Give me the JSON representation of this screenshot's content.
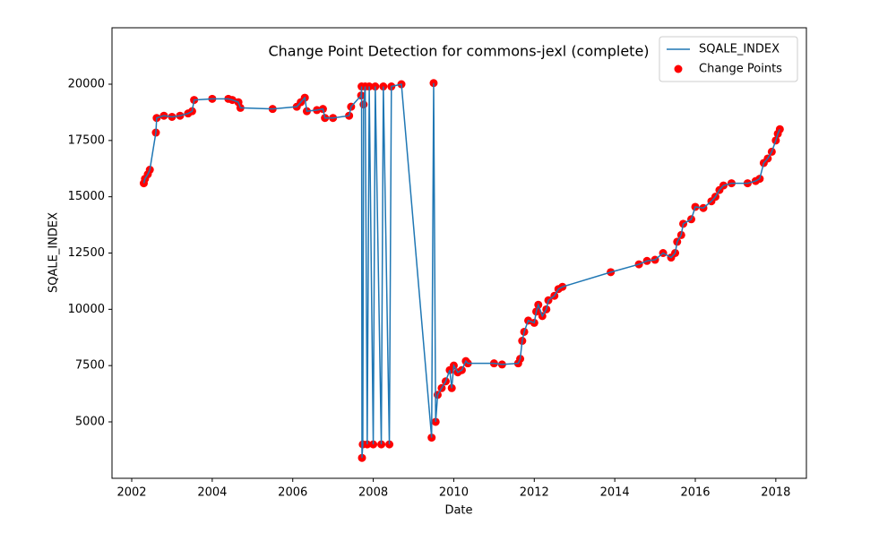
{
  "chart_data": {
    "type": "line",
    "title": "Change Point Detection for commons-jexl (complete)",
    "x_label": "Date",
    "y_label": "SQALE_INDEX",
    "x": [
      2002.3,
      2002.33,
      2002.4,
      2002.45,
      2002.6,
      2002.62,
      2002.8,
      2003.0,
      2003.2,
      2003.4,
      2003.5,
      2003.55,
      2004.0,
      2004.4,
      2004.5,
      2004.65,
      2004.7,
      2005.5,
      2006.1,
      2006.2,
      2006.3,
      2006.35,
      2006.6,
      2006.75,
      2006.8,
      2007.0,
      2007.4,
      2007.45,
      2007.7,
      2007.71,
      2007.72,
      2007.74,
      2007.76,
      2007.8,
      2007.85,
      2007.9,
      2008.0,
      2008.05,
      2008.2,
      2008.25,
      2008.4,
      2008.45,
      2008.7,
      2009.45,
      2009.5,
      2009.55,
      2009.6,
      2009.7,
      2009.8,
      2009.9,
      2009.95,
      2010.0,
      2010.1,
      2010.2,
      2010.3,
      2010.35,
      2011.0,
      2011.2,
      2011.6,
      2011.65,
      2011.7,
      2011.75,
      2011.85,
      2012.0,
      2012.05,
      2012.1,
      2012.2,
      2012.3,
      2012.35,
      2012.5,
      2012.6,
      2012.7,
      2013.9,
      2014.6,
      2014.8,
      2015.0,
      2015.2,
      2015.4,
      2015.5,
      2015.55,
      2015.65,
      2015.7,
      2015.9,
      2016.0,
      2016.2,
      2016.4,
      2016.5,
      2016.6,
      2016.7,
      2016.9,
      2017.3,
      2017.5,
      2017.6,
      2017.7,
      2017.8,
      2017.9,
      2018.0,
      2018.05,
      2018.1
    ],
    "series": [
      {
        "name": "SQALE_INDEX",
        "type": "line",
        "color": "#1f77b4",
        "values": [
          15600,
          15800,
          16000,
          16200,
          17850,
          18500,
          18600,
          18550,
          18600,
          18700,
          18800,
          19300,
          19350,
          19350,
          19300,
          19200,
          18950,
          18900,
          19000,
          19200,
          19400,
          18800,
          18850,
          18900,
          18500,
          18500,
          18600,
          19000,
          19500,
          19900,
          3400,
          4000,
          19100,
          19900,
          4000,
          19900,
          4000,
          19900,
          4000,
          19900,
          4000,
          19900,
          20000,
          4300,
          20050,
          5000,
          6200,
          6500,
          6800,
          7300,
          6500,
          7500,
          7200,
          7300,
          7700,
          7600,
          7600,
          7550,
          7600,
          7800,
          8600,
          9000,
          9500,
          9400,
          9900,
          10200,
          9700,
          10000,
          10400,
          10600,
          10900,
          11000,
          11650,
          12000,
          12150,
          12200,
          12500,
          12300,
          12500,
          13000,
          13300,
          13800,
          14000,
          14550,
          14500,
          14800,
          15000,
          15300,
          15500,
          15600,
          15600,
          15700,
          15800,
          16500,
          16700,
          17000,
          17500,
          17800,
          18000
        ]
      },
      {
        "name": "Change Points",
        "type": "scatter",
        "color": "#ff0000",
        "values": [
          15600,
          15800,
          16000,
          16200,
          17850,
          18500,
          18600,
          18550,
          18600,
          18700,
          18800,
          19300,
          19350,
          19350,
          19300,
          19200,
          18950,
          18900,
          19000,
          19200,
          19400,
          18800,
          18850,
          18900,
          18500,
          18500,
          18600,
          19000,
          19500,
          19900,
          3400,
          4000,
          19100,
          19900,
          4000,
          19900,
          4000,
          19900,
          4000,
          19900,
          4000,
          19900,
          20000,
          4300,
          20050,
          5000,
          6200,
          6500,
          6800,
          7300,
          6500,
          7500,
          7200,
          7300,
          7700,
          7600,
          7600,
          7550,
          7600,
          7800,
          8600,
          9000,
          9500,
          9400,
          9900,
          10200,
          9700,
          10000,
          10400,
          10600,
          10900,
          11000,
          11650,
          12000,
          12150,
          12200,
          12500,
          12300,
          12500,
          13000,
          13300,
          13800,
          14000,
          14550,
          14500,
          14800,
          15000,
          15300,
          15500,
          15600,
          15600,
          15700,
          15800,
          16500,
          16700,
          17000,
          17500,
          17800,
          18000
        ]
      }
    ],
    "xlim": [
      2001.51,
      2018.76
    ],
    "xticks": [
      2002,
      2004,
      2006,
      2008,
      2010,
      2012,
      2014,
      2016,
      2018
    ],
    "ylim": [
      2493,
      22507
    ],
    "yticks": [
      5000,
      7500,
      10000,
      12500,
      15000,
      17500,
      20000
    ],
    "legend": "upper right"
  }
}
